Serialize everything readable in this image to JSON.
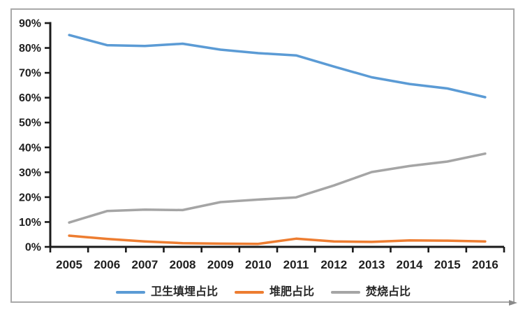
{
  "chart_data": {
    "type": "line",
    "title": "",
    "categories": [
      "2005",
      "2006",
      "2007",
      "2008",
      "2009",
      "2010",
      "2011",
      "2012",
      "2013",
      "2014",
      "2015",
      "2016"
    ],
    "series": [
      {
        "name": "卫生填埋占比",
        "color": "#5B9BD5",
        "values": [
          85.2,
          81.1,
          80.8,
          81.7,
          79.3,
          77.9,
          77.0,
          72.5,
          68.2,
          65.5,
          63.7,
          60.2
        ]
      },
      {
        "name": "堆肥占比",
        "color": "#ED7D31",
        "values": [
          4.5,
          3.2,
          2.2,
          1.5,
          1.3,
          1.2,
          3.3,
          2.2,
          2.0,
          2.6,
          2.5,
          2.2
        ]
      },
      {
        "name": "焚烧占比",
        "color": "#A5A5A5",
        "values": [
          9.8,
          14.4,
          15.0,
          14.8,
          18.0,
          19.0,
          19.9,
          24.7,
          30.1,
          32.5,
          34.3,
          37.5
        ]
      }
    ],
    "xlabel": "",
    "ylabel": "",
    "ylim": [
      0,
      90
    ],
    "ytick_step": 10,
    "ytick_labels": [
      "0%",
      "10%",
      "20%",
      "30%",
      "40%",
      "50%",
      "60%",
      "70%",
      "80%",
      "90%"
    ],
    "grid": false,
    "legend_position": "bottom"
  },
  "style": {
    "axis_color": "#1a1a1a",
    "tick_label_color": "#1f1f1f",
    "frame_border_color": "#a9a9a9"
  }
}
